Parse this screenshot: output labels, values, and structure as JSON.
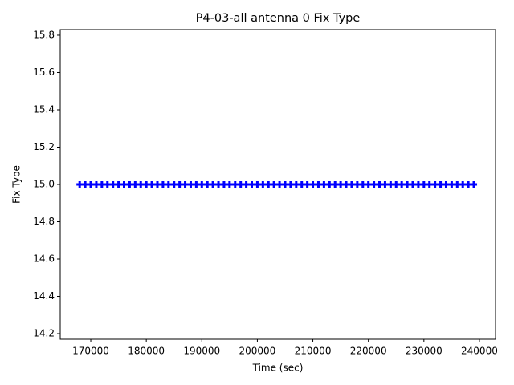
{
  "chart_data": {
    "type": "scatter",
    "title": "P4-03-all antenna 0 Fix Type",
    "xlabel": "Time (sec)",
    "ylabel": "Fix Type",
    "xlim": [
      164500,
      242900
    ],
    "ylim": [
      14.17,
      15.83
    ],
    "xticks": [
      170000,
      180000,
      190000,
      200000,
      210000,
      220000,
      230000,
      240000
    ],
    "yticks": [
      14.2,
      14.4,
      14.6,
      14.8,
      {
        "value": 15,
        "label": "15.0"
      },
      15.2,
      15.4,
      15.6,
      15.8
    ],
    "marker": "+",
    "color": "#0000ff",
    "x": [
      168000,
      169000,
      170000,
      171000,
      172000,
      173000,
      174000,
      175000,
      176000,
      177000,
      178000,
      179000,
      180000,
      181000,
      182000,
      183000,
      184000,
      185000,
      186000,
      187000,
      188000,
      189000,
      190000,
      191000,
      192000,
      193000,
      194000,
      195000,
      196000,
      197000,
      198000,
      199000,
      200000,
      201000,
      202000,
      203000,
      204000,
      205000,
      206000,
      207000,
      208000,
      209000,
      210000,
      211000,
      212000,
      213000,
      214000,
      215000,
      216000,
      217000,
      218000,
      219000,
      220000,
      221000,
      222000,
      223000,
      224000,
      225000,
      226000,
      227000,
      228000,
      229000,
      230000,
      231000,
      232000,
      233000,
      234000,
      235000,
      236000,
      237000,
      238000,
      239000
    ],
    "values": [
      15,
      15,
      15,
      15,
      15,
      15,
      15,
      15,
      15,
      15,
      15,
      15,
      15,
      15,
      15,
      15,
      15,
      15,
      15,
      15,
      15,
      15,
      15,
      15,
      15,
      15,
      15,
      15,
      15,
      15,
      15,
      15,
      15,
      15,
      15,
      15,
      15,
      15,
      15,
      15,
      15,
      15,
      15,
      15,
      15,
      15,
      15,
      15,
      15,
      15,
      15,
      15,
      15,
      15,
      15,
      15,
      15,
      15,
      15,
      15,
      15,
      15,
      15,
      15,
      15,
      15,
      15,
      15,
      15,
      15,
      15,
      15
    ]
  }
}
